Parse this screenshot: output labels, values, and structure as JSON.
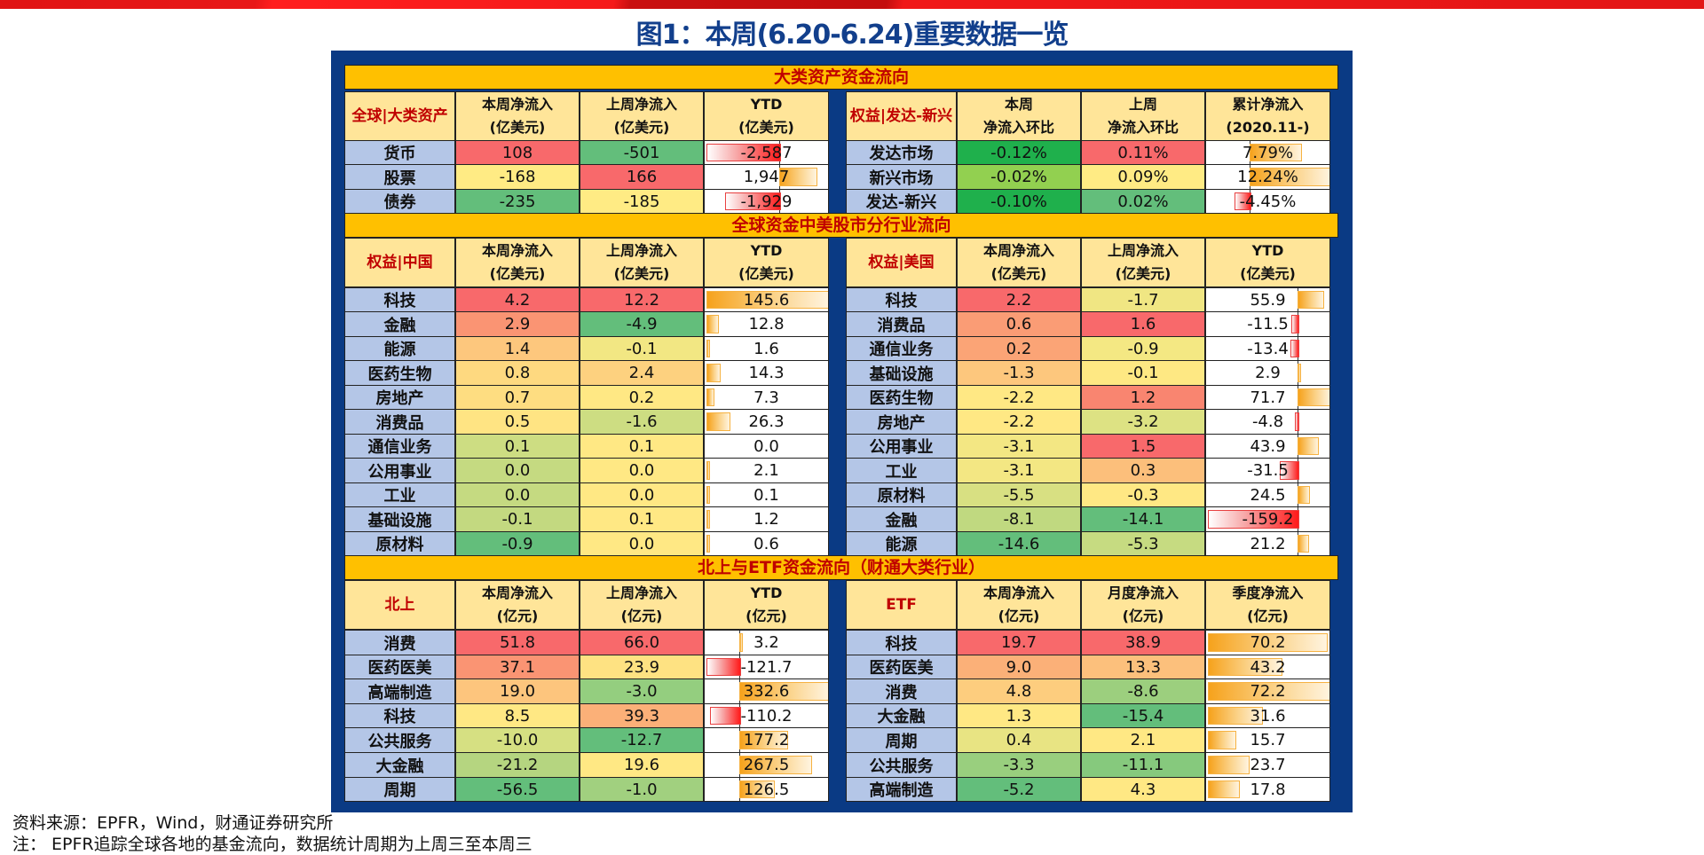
{
  "title": "图1：本周(6.20-6.24)重要数据一览",
  "colors": {
    "frame": "#0a3a84",
    "section_bg": "#ffc000",
    "header_bg": "#ffe599",
    "label_bg": "#b4c6e7",
    "title": "#123f8c",
    "accent_red": "#c00000"
  },
  "sections": [
    {
      "title": "大类资产资金流向",
      "left": {
        "corner": "全球|大类资产",
        "headers": [
          [
            "本周净流入",
            "(亿美元)"
          ],
          [
            "上周净流入",
            "(亿美元)"
          ],
          [
            "YTD",
            "(亿美元)"
          ]
        ],
        "rows": [
          {
            "label": "货币",
            "c1": "108",
            "c2": "-501",
            "ytd": "-2,587",
            "c1_color": "#f8696b",
            "c2_color": "#63be7b",
            "bar": -1.0
          },
          {
            "label": "股票",
            "c1": "-168",
            "c2": "166",
            "ytd": "1,947",
            "c1_color": "#ffeb84",
            "c2_color": "#f8696b",
            "bar": 0.75
          },
          {
            "label": "债券",
            "c1": "-235",
            "c2": "-185",
            "ytd": "-1,929",
            "c1_color": "#63be7b",
            "c2_color": "#ffeb84",
            "bar": -0.75
          }
        ],
        "axis": 0.6
      },
      "right": {
        "corner": "权益|发达-新兴",
        "headers": [
          [
            "本周",
            "净流入环比"
          ],
          [
            "上周",
            "净流入环比"
          ],
          [
            "累计净流入",
            "(2020.11-)"
          ]
        ],
        "rows": [
          {
            "label": "发达市场",
            "c1": "-0.12%",
            "c2": "0.11%",
            "ytd": "7.79%",
            "c1_color": "#1fb04c",
            "c2_color": "#f8696b",
            "bar": 0.63
          },
          {
            "label": "新兴市场",
            "c1": "-0.02%",
            "c2": "0.09%",
            "ytd": "12.24%",
            "c1_color": "#92d050",
            "c2_color": "#ffeb84",
            "bar": 1.0
          },
          {
            "label": "发达-新兴",
            "c1": "-0.10%",
            "c2": "0.02%",
            "ytd": "-4.45%",
            "c1_color": "#1fb04c",
            "c2_color": "#63be7b",
            "bar": -0.36
          }
        ],
        "axis": 0.34
      }
    },
    {
      "title": "全球资金中美股市分行业流向",
      "left": {
        "corner": "权益|中国",
        "headers": [
          [
            "本周净流入",
            "(亿美元)"
          ],
          [
            "上周净流入",
            "(亿美元)"
          ],
          [
            "YTD",
            "(亿美元)"
          ]
        ],
        "rows": [
          {
            "label": "科技",
            "c1": "4.2",
            "c2": "12.2",
            "ytd": "145.6",
            "c1_color": "#f8696b",
            "c2_color": "#f8696b",
            "bar": 1.0
          },
          {
            "label": "金融",
            "c1": "2.9",
            "c2": "-4.9",
            "ytd": "12.8",
            "c1_color": "#fa9473",
            "c2_color": "#63be7b",
            "bar": 0.09
          },
          {
            "label": "能源",
            "c1": "1.4",
            "c2": "-0.1",
            "ytd": "1.6",
            "c1_color": "#fdc77d",
            "c2_color": "#f2e783",
            "bar": 0.015
          },
          {
            "label": "医药生物",
            "c1": "0.8",
            "c2": "2.4",
            "ytd": "14.3",
            "c1_color": "#fed980",
            "c2_color": "#fdd17f",
            "bar": 0.1
          },
          {
            "label": "房地产",
            "c1": "0.7",
            "c2": "0.2",
            "ytd": "7.3",
            "c1_color": "#fedd81",
            "c2_color": "#ffe884",
            "bar": 0.05
          },
          {
            "label": "消费品",
            "c1": "0.5",
            "c2": "-1.6",
            "ytd": "26.3",
            "c1_color": "#ffe483",
            "c2_color": "#cddd82",
            "bar": 0.18
          },
          {
            "label": "通信业务",
            "c1": "0.1",
            "c2": "0.1",
            "ytd": "0.0",
            "c1_color": "#cddd82",
            "c2_color": "#ffe884",
            "bar": 0
          },
          {
            "label": "公用事业",
            "c1": "0.0",
            "c2": "0.0",
            "ytd": "2.1",
            "c1_color": "#c5da81",
            "c2_color": "#ffe884",
            "bar": 0.015
          },
          {
            "label": "工业",
            "c1": "0.0",
            "c2": "0.0",
            "ytd": "0.1",
            "c1_color": "#c5da81",
            "c2_color": "#ffe884",
            "bar": 0.002
          },
          {
            "label": "基础设施",
            "c1": "-0.1",
            "c2": "0.1",
            "ytd": "1.2",
            "c1_color": "#c3d980",
            "c2_color": "#ffe884",
            "bar": 0.01
          },
          {
            "label": "原材料",
            "c1": "-0.9",
            "c2": "0.0",
            "ytd": "0.6",
            "c1_color": "#63be7b",
            "c2_color": "#ffe884",
            "bar": 0.005
          }
        ],
        "axis": 0.0
      },
      "right": {
        "corner": "权益|美国",
        "headers": [
          [
            "本周净流入",
            "(亿美元)"
          ],
          [
            "上周净流入",
            "(亿美元)"
          ],
          [
            "YTD",
            "(亿美元)"
          ]
        ],
        "rows": [
          {
            "label": "科技",
            "c1": "2.2",
            "c2": "-1.7",
            "ytd": "55.9",
            "c1_color": "#f8696b",
            "c2_color": "#f0e683",
            "bar": 0.78
          },
          {
            "label": "消费品",
            "c1": "0.6",
            "c2": "1.6",
            "ytd": "-11.5",
            "c1_color": "#fa9c75",
            "c2_color": "#f8696b",
            "bar": -0.07
          },
          {
            "label": "通信业务",
            "c1": "0.2",
            "c2": "-0.9",
            "ytd": "-13.4",
            "c1_color": "#fba476",
            "c2_color": "#f4e883",
            "bar": -0.08
          },
          {
            "label": "基础设施",
            "c1": "-1.3",
            "c2": "-0.1",
            "ytd": "2.9",
            "c1_color": "#fdc77d",
            "c2_color": "#fee883",
            "bar": 0.04
          },
          {
            "label": "医药生物",
            "c1": "-2.2",
            "c2": "1.2",
            "ytd": "71.7",
            "c1_color": "#ffe884",
            "c2_color": "#f98570",
            "bar": 1.0
          },
          {
            "label": "房地产",
            "c1": "-2.2",
            "c2": "-3.2",
            "ytd": "-4.8",
            "c1_color": "#ffe884",
            "c2_color": "#dde283",
            "bar": -0.03
          },
          {
            "label": "公用事业",
            "c1": "-3.1",
            "c2": "1.5",
            "ytd": "43.9",
            "c1_color": "#f3e783",
            "c2_color": "#f8696b",
            "bar": 0.61
          },
          {
            "label": "工业",
            "c1": "-3.1",
            "c2": "0.3",
            "ytd": "-31.5",
            "c1_color": "#f3e783",
            "c2_color": "#fcbf7b",
            "bar": -0.2
          },
          {
            "label": "原材料",
            "c1": "-5.5",
            "c2": "-0.3",
            "ytd": "24.5",
            "c1_color": "#d8e082",
            "c2_color": "#ffe884",
            "bar": 0.34
          },
          {
            "label": "金融",
            "c1": "-8.1",
            "c2": "-14.1",
            "ytd": "-159.2",
            "c1_color": "#c0d980",
            "c2_color": "#63be7b",
            "bar": -1.0
          },
          {
            "label": "能源",
            "c1": "-14.6",
            "c2": "-5.3",
            "ytd": "21.2",
            "c1_color": "#63be7b",
            "c2_color": "#c6db81",
            "bar": 0.3
          }
        ],
        "axis": 0.74
      }
    },
    {
      "title": "北上与ETF资金流向（财通大类行业）",
      "left": {
        "corner": "北上",
        "headers": [
          [
            "本周净流入",
            "(亿元)"
          ],
          [
            "上周净流入",
            "(亿元)"
          ],
          [
            "YTD",
            "(亿元)"
          ]
        ],
        "rows": [
          {
            "label": "消费",
            "c1": "51.8",
            "c2": "66.0",
            "ytd": "3.2",
            "c1_color": "#f8696b",
            "c2_color": "#f8696b",
            "bar": 0.01
          },
          {
            "label": "医药医美",
            "c1": "37.1",
            "c2": "23.9",
            "ytd": "-121.7",
            "c1_color": "#fa9473",
            "c2_color": "#fee282",
            "bar": -1.0
          },
          {
            "label": "高端制造",
            "c1": "19.0",
            "c2": "-3.0",
            "ytd": "332.6",
            "c1_color": "#fdc57d",
            "c2_color": "#94ce7f",
            "bar": 1.0
          },
          {
            "label": "科技",
            "c1": "8.5",
            "c2": "39.3",
            "ytd": "-110.2",
            "c1_color": "#ffe884",
            "c2_color": "#fbb078",
            "bar": -0.9
          },
          {
            "label": "公共服务",
            "c1": "-10.0",
            "c2": "-12.7",
            "ytd": "177.2",
            "c1_color": "#d6e082",
            "c2_color": "#63be7b",
            "bar": 0.53
          },
          {
            "label": "大金融",
            "c1": "-21.2",
            "c2": "19.6",
            "ytd": "267.5",
            "c1_color": "#b5d580",
            "c2_color": "#ffe884",
            "bar": 0.8
          },
          {
            "label": "周期",
            "c1": "-56.5",
            "c2": "-1.0",
            "ytd": "126.5",
            "c1_color": "#63be7b",
            "c2_color": "#a1d07f",
            "bar": 0.38
          }
        ],
        "axis": 0.27
      },
      "right": {
        "corner": "ETF",
        "headers": [
          [
            "本周净流入",
            "(亿元)"
          ],
          [
            "月度净流入",
            "(亿元)"
          ],
          [
            "季度净流入",
            "(亿元)"
          ]
        ],
        "rows": [
          {
            "label": "科技",
            "c1": "19.7",
            "c2": "38.9",
            "ytd": "70.2",
            "c1_color": "#f8696b",
            "c2_color": "#f8696b",
            "bar": 0.97
          },
          {
            "label": "医药医美",
            "c1": "9.0",
            "c2": "13.3",
            "ytd": "43.2",
            "c1_color": "#fbb078",
            "c2_color": "#fcc07c",
            "bar": 0.6
          },
          {
            "label": "消费",
            "c1": "4.8",
            "c2": "-8.6",
            "ytd": "72.2",
            "c1_color": "#fdcd7e",
            "c2_color": "#9ccf7e",
            "bar": 1.0
          },
          {
            "label": "大金融",
            "c1": "1.3",
            "c2": "-15.4",
            "ytd": "31.6",
            "c1_color": "#ffe884",
            "c2_color": "#63be7b",
            "bar": 0.44
          },
          {
            "label": "周期",
            "c1": "0.4",
            "c2": "2.1",
            "ytd": "15.7",
            "c1_color": "#e8e483",
            "c2_color": "#ffe884",
            "bar": 0.22
          },
          {
            "label": "公共服务",
            "c1": "-3.3",
            "c2": "-11.1",
            "ytd": "23.7",
            "c1_color": "#99cf7e",
            "c2_color": "#86c97d",
            "bar": 0.33
          },
          {
            "label": "高端制造",
            "c1": "-5.2",
            "c2": "4.3",
            "ytd": "17.8",
            "c1_color": "#63be7b",
            "c2_color": "#ffe884",
            "bar": 0.25
          }
        ],
        "axis": 0.0
      }
    }
  ],
  "footer": {
    "source": "资料来源：EPFR，Wind，财通证券研究所",
    "note": "注：  EPFR追踪全球各地的基金流向，数据统计周期为上周三至本周三"
  }
}
